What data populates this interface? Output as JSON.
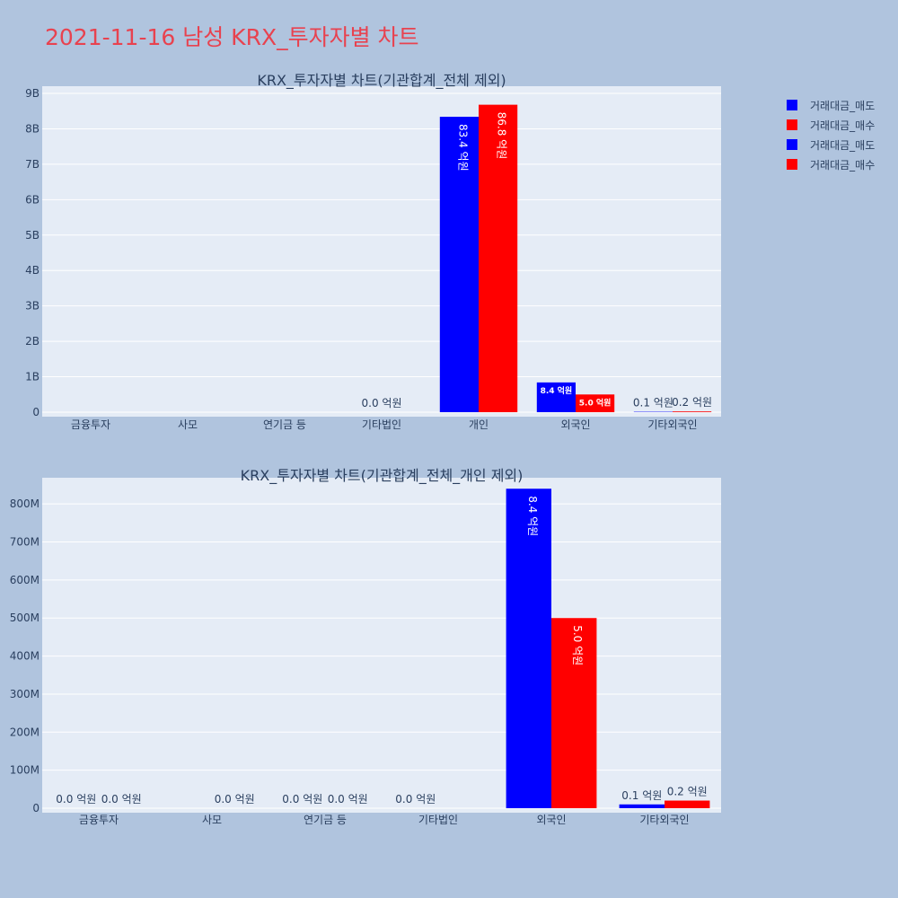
{
  "page_title": "2021-11-16 남성 KRX_투자자별 차트",
  "colors": {
    "sell": "#0000ff",
    "buy": "#ff0000",
    "plot_bg": "#e5ecf6",
    "page_bg": "#b0c4de"
  },
  "legend": [
    {
      "label": "거래대금_매도",
      "color": "#0000ff"
    },
    {
      "label": "거래대금_매수",
      "color": "#ff0000"
    },
    {
      "label": "거래대금_매도",
      "color": "#0000ff"
    },
    {
      "label": "거래대금_매수",
      "color": "#ff0000"
    }
  ],
  "chart_data": [
    {
      "type": "bar",
      "title": "KRX_투자자별 차트(기관합계_전체 제외)",
      "categories": [
        "금융투자",
        "사모",
        "연기금 등",
        "기타법인",
        "개인",
        "외국인",
        "기타외국인"
      ],
      "series": [
        {
          "name": "거래대금_매도",
          "values": [
            0,
            0,
            0,
            0,
            8340000000,
            840000000,
            10000000
          ],
          "labels": [
            "",
            "",
            "",
            "",
            "83.4 억원",
            "8.4 억원",
            "0.1 억원"
          ]
        },
        {
          "name": "거래대금_매수",
          "values": [
            0,
            0,
            0,
            0,
            8680000000,
            500000000,
            20000000
          ],
          "labels": [
            "",
            "",
            "",
            "",
            "86.8 억원",
            "5.0 억원",
            "0.2 억원"
          ]
        }
      ],
      "extra_labels": [
        {
          "category": "기타법인",
          "text": "0.0 억원"
        }
      ],
      "ylim": [
        0,
        9000000000
      ],
      "yticks": [
        0,
        1000000000,
        2000000000,
        3000000000,
        4000000000,
        5000000000,
        6000000000,
        7000000000,
        8000000000,
        9000000000
      ],
      "yticklabels": [
        "0",
        "1B",
        "2B",
        "3B",
        "4B",
        "5B",
        "6B",
        "7B",
        "8B",
        "9B"
      ]
    },
    {
      "type": "bar",
      "title": "KRX_투자자별 차트(기관합계_전체_개인 제외)",
      "categories": [
        "금융투자",
        "사모",
        "연기금 등",
        "기타법인",
        "외국인",
        "기타외국인"
      ],
      "series": [
        {
          "name": "거래대금_매도",
          "values": [
            0,
            0,
            0,
            0,
            840000000,
            10000000
          ],
          "labels": [
            "0.0 억원",
            "",
            "0.0 억원",
            "0.0 억원",
            "8.4 억원",
            "0.1 억원"
          ]
        },
        {
          "name": "거래대금_매수",
          "values": [
            0,
            0,
            0,
            0,
            500000000,
            20000000
          ],
          "labels": [
            "0.0 억원",
            "0.0 억원",
            "0.0 억원",
            "",
            "5.0 억원",
            "0.2 억원"
          ]
        }
      ],
      "ylim": [
        0,
        850000000
      ],
      "yticks": [
        0,
        100000000,
        200000000,
        300000000,
        400000000,
        500000000,
        600000000,
        700000000,
        800000000
      ],
      "yticklabels": [
        "0",
        "100M",
        "200M",
        "300M",
        "400M",
        "500M",
        "600M",
        "700M",
        "800M"
      ]
    }
  ]
}
